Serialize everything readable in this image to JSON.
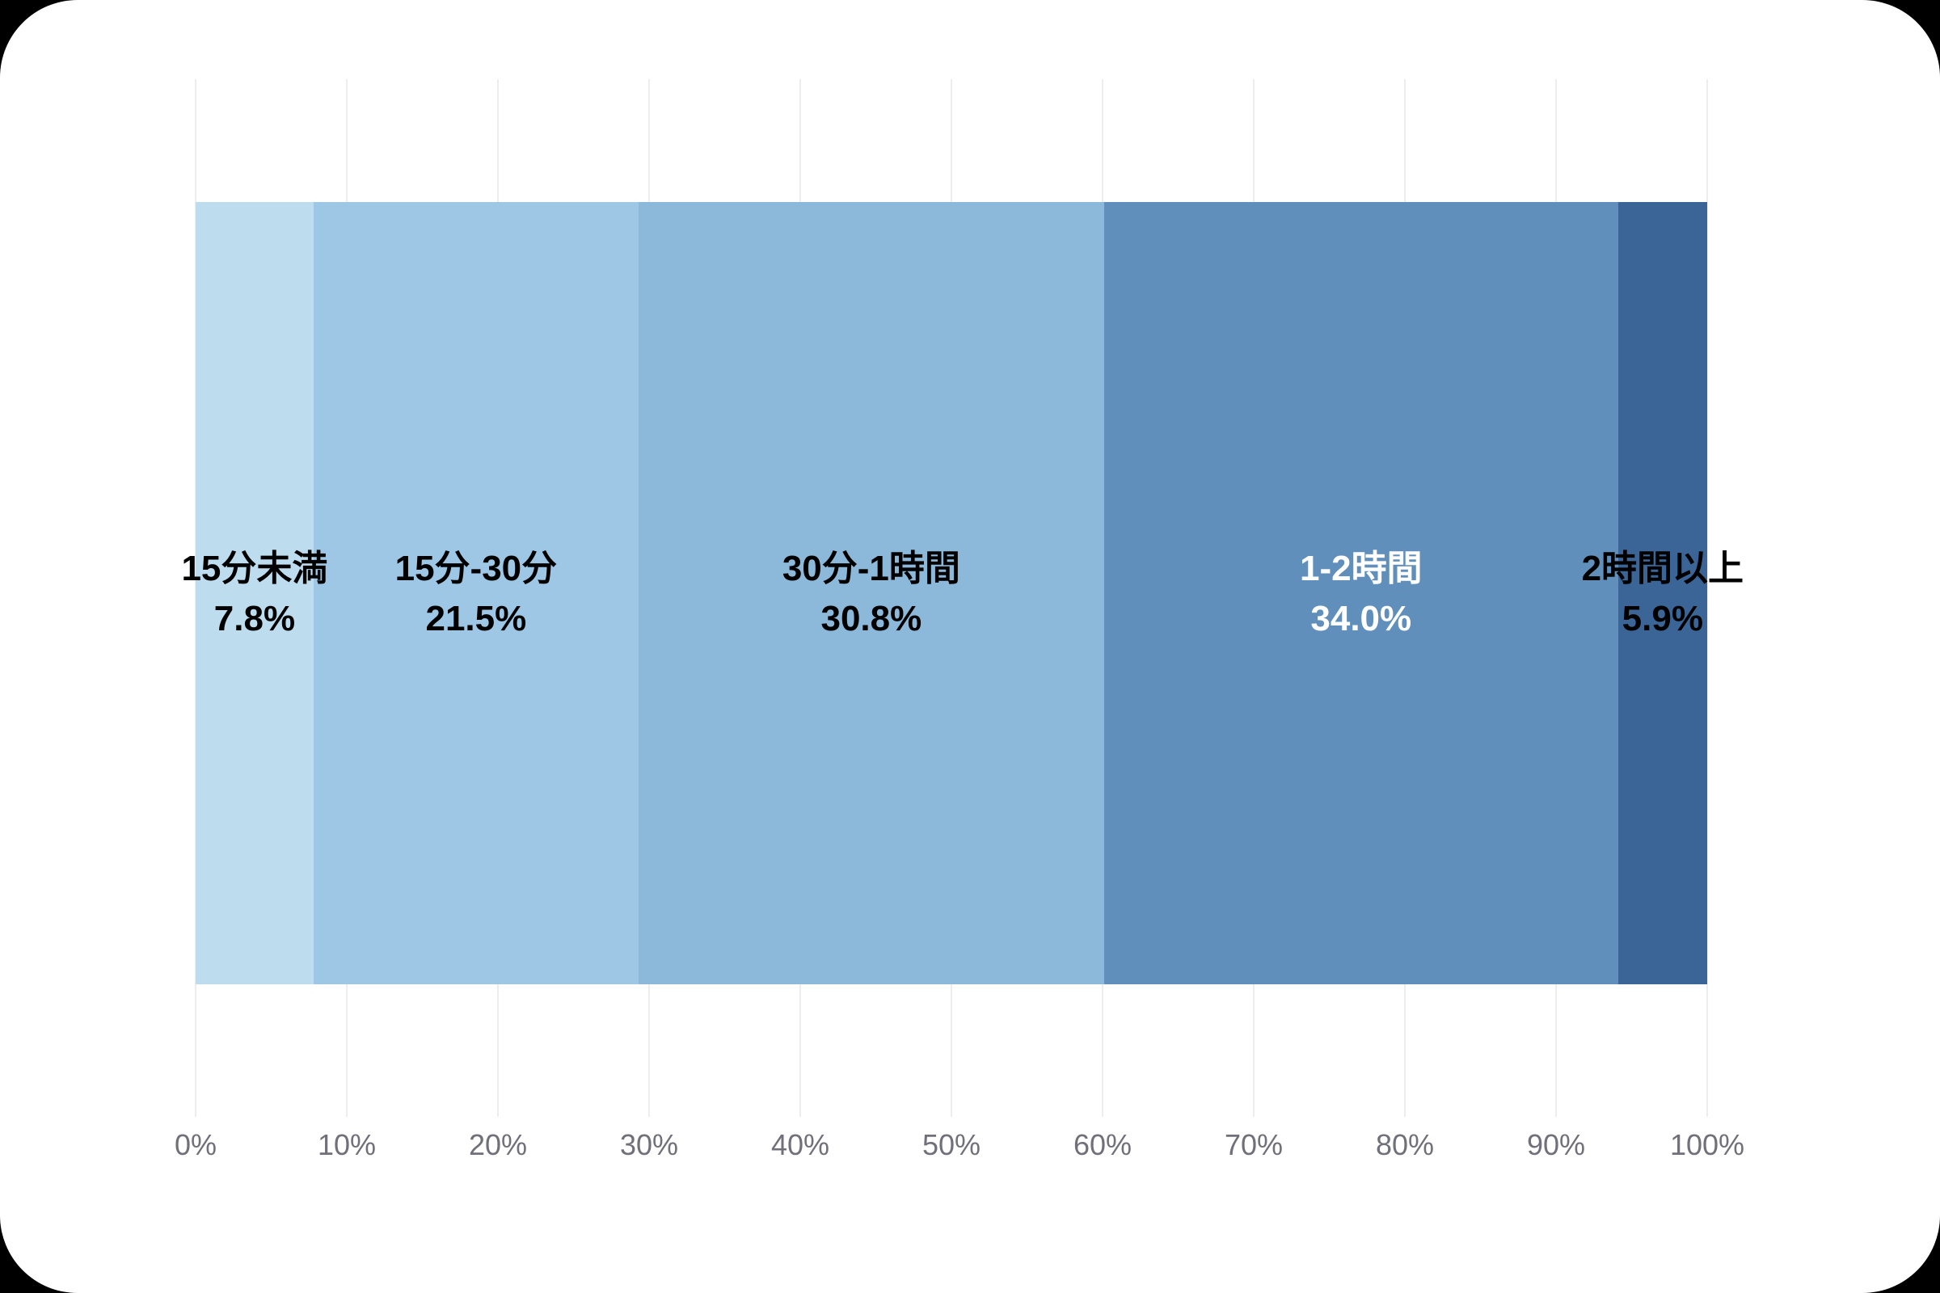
{
  "window": {
    "background_color": "#000000",
    "card_color": "#FFFFFF"
  },
  "chart_data": {
    "type": "bar",
    "subtype": "horizontal-stacked-100-percent",
    "title": "",
    "xlabel": "",
    "ylabel": "",
    "categories": [
      "15分未満",
      "15分-30分",
      "30分-1時間",
      "1-2時間",
      "2時間以上"
    ],
    "values": [
      7.8,
      21.5,
      30.8,
      34.0,
      5.9
    ],
    "value_labels": [
      "7.8%",
      "21.5%",
      "30.8%",
      "34.0%",
      "5.9%"
    ],
    "segment_colors": [
      "#BDDCEE",
      "#9DC7E4",
      "#8CB8DA",
      "#5F8FBA",
      "#3A6596"
    ],
    "label_text_colors": [
      "#000000",
      "#000000",
      "#000000",
      "#FFFFFF",
      "#000000"
    ],
    "xlim": [
      0,
      100
    ],
    "x_tick_values": [
      0,
      10,
      20,
      30,
      40,
      50,
      60,
      70,
      80,
      90,
      100
    ],
    "x_tick_labels": [
      "0%",
      "10%",
      "20%",
      "30%",
      "40%",
      "50%",
      "60%",
      "70%",
      "80%",
      "90%",
      "100%"
    ],
    "grid": "vertical-only",
    "gridline_color": "#EDEDED",
    "axis_text_color": "#70707A",
    "legend_position": "none"
  }
}
